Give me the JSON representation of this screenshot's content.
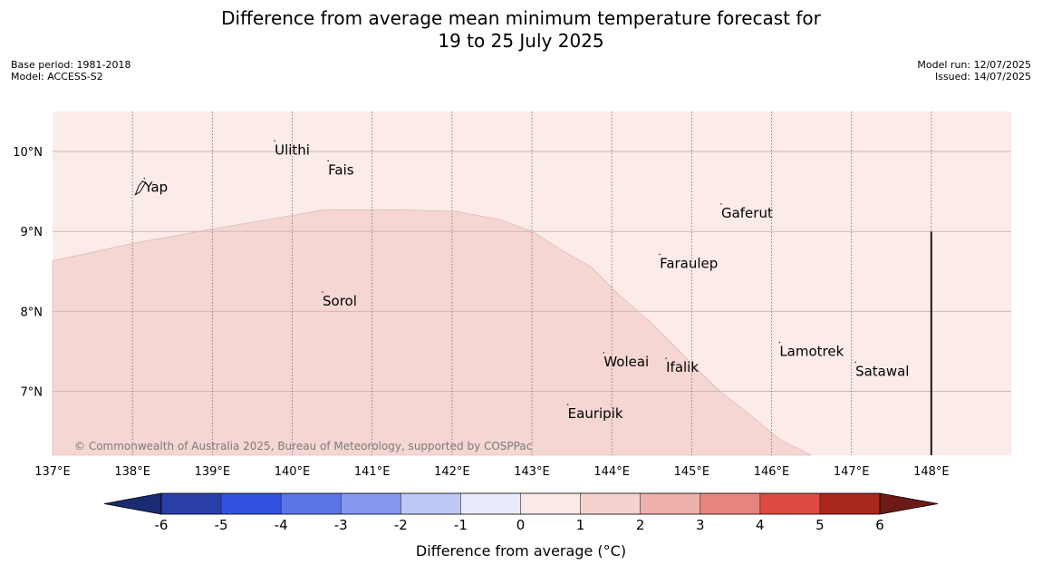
{
  "header": {
    "title_line1": "Difference from average mean minimum temperature forecast for",
    "title_line2": "19 to 25 July 2025",
    "base_period": "Base period: 1981-2018",
    "model": "Model: ACCESS-S2",
    "model_run": "Model run: 12/07/2025",
    "issued": "Issued: 14/07/2025"
  },
  "map": {
    "lon_range": [
      137,
      149
    ],
    "lat_range": [
      6.2,
      10.5
    ],
    "lon_ticks": [
      {
        "value": 137,
        "label": "137°E"
      },
      {
        "value": 138,
        "label": "138°E"
      },
      {
        "value": 139,
        "label": "139°E"
      },
      {
        "value": 140,
        "label": "140°E"
      },
      {
        "value": 141,
        "label": "141°E"
      },
      {
        "value": 142,
        "label": "142°E"
      },
      {
        "value": 143,
        "label": "143°E"
      },
      {
        "value": 144,
        "label": "144°E"
      },
      {
        "value": 145,
        "label": "145°E"
      },
      {
        "value": 146,
        "label": "146°E"
      },
      {
        "value": 147,
        "label": "147°E"
      },
      {
        "value": 148,
        "label": "148°E"
      }
    ],
    "lat_ticks": [
      {
        "value": 10,
        "label": "10°N"
      },
      {
        "value": 9,
        "label": "9°N"
      },
      {
        "value": 8,
        "label": "8°N"
      },
      {
        "value": 7,
        "label": "7°N"
      }
    ],
    "background_anomaly_band": "0 to 1",
    "background_color": "#fbebe9",
    "region_anomaly_band": "1 to 2",
    "region_color": "#f5d6d3",
    "region_lonlat": [
      [
        137,
        8.63
      ],
      [
        138,
        8.85
      ],
      [
        139,
        9.03
      ],
      [
        139.7,
        9.15
      ],
      [
        140.4,
        9.27
      ],
      [
        141.4,
        9.27
      ],
      [
        142.05,
        9.25
      ],
      [
        142.6,
        9.15
      ],
      [
        143,
        9.0
      ],
      [
        143.4,
        8.75
      ],
      [
        143.75,
        8.55
      ],
      [
        144.1,
        8.2
      ],
      [
        144.5,
        7.85
      ],
      [
        144.9,
        7.45
      ],
      [
        145.3,
        7.05
      ],
      [
        145.7,
        6.73
      ],
      [
        146.1,
        6.4
      ],
      [
        146.5,
        6.2
      ],
      [
        137,
        6.2
      ]
    ],
    "places": [
      {
        "name": "Ulithi",
        "lon": 139.78,
        "lat": 10.02
      },
      {
        "name": "Fais",
        "lon": 140.45,
        "lat": 9.77
      },
      {
        "name": "Yap",
        "lon": 138.15,
        "lat": 9.55
      },
      {
        "name": "Gaferut",
        "lon": 145.37,
        "lat": 9.23
      },
      {
        "name": "Faraulep",
        "lon": 144.6,
        "lat": 8.6
      },
      {
        "name": "Sorol",
        "lon": 140.38,
        "lat": 8.13
      },
      {
        "name": "Lamotrek",
        "lon": 146.1,
        "lat": 7.5
      },
      {
        "name": "Woleai",
        "lon": 143.9,
        "lat": 7.37
      },
      {
        "name": "Ifalik",
        "lon": 144.68,
        "lat": 7.3
      },
      {
        "name": "Satawal",
        "lon": 147.05,
        "lat": 7.25
      },
      {
        "name": "Eauripik",
        "lon": 143.45,
        "lat": 6.72
      }
    ],
    "copyright": "© Commonwealth of Australia 2025, Bureau of Meteorology, supported by COSPPac",
    "line_lon": 148.0,
    "line_lat_range": [
      6.2,
      9.0
    ]
  },
  "colorbar": {
    "label": "Difference from average (°C)",
    "ticks": [
      "-6",
      "-5",
      "-4",
      "-3",
      "-2",
      "-1",
      "0",
      "1",
      "2",
      "3",
      "4",
      "5",
      "6"
    ],
    "under_color": "#1c2a74",
    "over_color": "#6e1a16",
    "colors": [
      "#2a3ea8",
      "#3250e0",
      "#5b74e6",
      "#8597ee",
      "#bfc8f6",
      "#e8ebfc",
      "#fbe9e8",
      "#f5d1cf",
      "#eeb0ab",
      "#e8847e",
      "#de4a3f",
      "#a9271f"
    ]
  }
}
